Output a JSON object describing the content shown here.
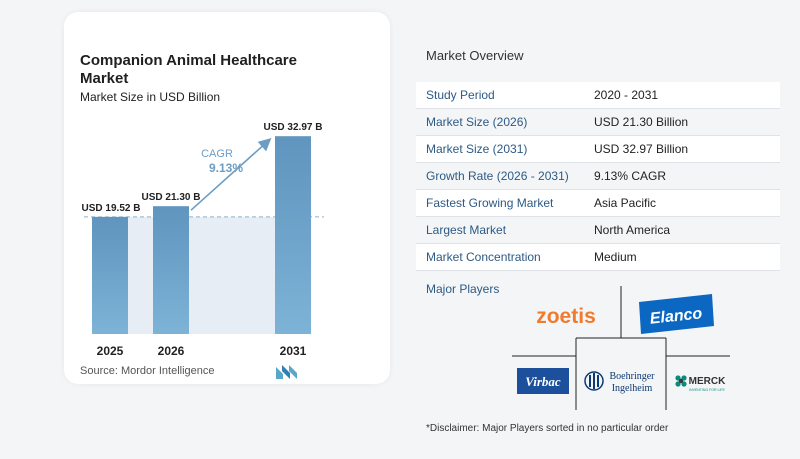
{
  "chart": {
    "title": "Companion Animal Healthcare Market",
    "subtitle": "Market Size in USD Billion",
    "source": "Source:  Mordor Intelligence",
    "cagr_label": "CAGR",
    "cagr_value": "9.13%"
  },
  "chart_data": {
    "type": "bar",
    "title": "Companion Animal Healthcare Market",
    "subtitle": "Market Size in USD Billion",
    "categories": [
      "2025",
      "2026",
      "2031"
    ],
    "values": [
      19.52,
      21.3,
      32.97
    ],
    "data_labels": [
      "USD 19.52 B",
      "USD 21.30 B",
      "USD 32.97 B"
    ],
    "annotation": "CAGR 9.13%",
    "ylim": [
      0,
      36
    ],
    "colors": {
      "bar": "#6aa0c7",
      "bar_top": "#5e94bd",
      "shade": "#e6edf4",
      "arrow": "#6c9dc4"
    }
  },
  "overview": {
    "title": "Market Overview",
    "rows": [
      {
        "label": "Study Period",
        "value": "2020 - 2031"
      },
      {
        "label": "Market Size (2026)",
        "value": "USD 21.30 Billion"
      },
      {
        "label": "Market Size (2031)",
        "value": "USD 32.97 Billion"
      },
      {
        "label": "Growth Rate (2026 - 2031)",
        "value": "9.13% CAGR"
      },
      {
        "label": "Fastest Growing Market",
        "value": "Asia Pacific"
      },
      {
        "label": "Largest Market",
        "value": "North America"
      },
      {
        "label": "Market Concentration",
        "value": "Medium"
      }
    ]
  },
  "players": {
    "title": "Major Players",
    "logos": [
      "zoetis",
      "Elanco",
      "Virbac",
      "Boehringer Ingelheim",
      "MERCK"
    ],
    "zoetis": "zoetis",
    "elanco": "Elanco",
    "virbac": "Virbac",
    "boehringer_line1": "Boehringer",
    "boehringer_line2": "Ingelheim",
    "merck": "MERCK",
    "merck_tagline": "INVENTING FOR LIFE",
    "disclaimer": "*Disclaimer: Major Players sorted in no particular order"
  }
}
